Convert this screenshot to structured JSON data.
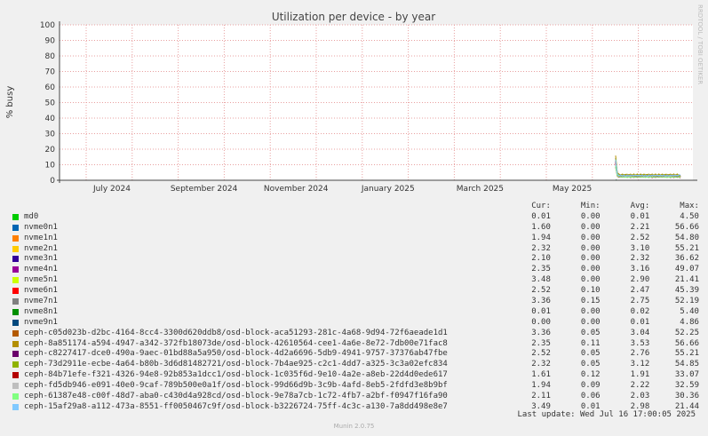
{
  "chart_data": {
    "type": "line",
    "title": "Utilization per device - by year",
    "ylabel": "% busy",
    "ylim": [
      0,
      100
    ],
    "y_ticks": [
      0,
      10,
      20,
      30,
      40,
      50,
      60,
      70,
      80,
      90,
      100
    ],
    "x_tick_labels": [
      "July 2024",
      "September 2024",
      "November 2024",
      "January 2025",
      "March 2025",
      "May 2025"
    ],
    "side_label": "RRDTOOL / TOBI OETIKER",
    "data_start": "2025-05-15",
    "data_end": "2025-07-16",
    "legend_headers": {
      "cur": "Cur:",
      "min": "Min:",
      "avg": "Avg:",
      "max": "Max:"
    },
    "series": [
      {
        "name": "md0",
        "color": "#00cc00",
        "cur": "0.01",
        "min": "0.00",
        "avg": "0.01",
        "max": "4.50"
      },
      {
        "name": "nvme0n1",
        "color": "#0066b3",
        "cur": "1.60",
        "min": "0.00",
        "avg": "2.21",
        "max": "56.66"
      },
      {
        "name": "nvme1n1",
        "color": "#ff8000",
        "cur": "1.94",
        "min": "0.00",
        "avg": "2.52",
        "max": "54.80"
      },
      {
        "name": "nvme2n1",
        "color": "#ffcc00",
        "cur": "2.32",
        "min": "0.00",
        "avg": "3.10",
        "max": "55.21"
      },
      {
        "name": "nvme3n1",
        "color": "#330099",
        "cur": "2.10",
        "min": "0.00",
        "avg": "2.32",
        "max": "36.62"
      },
      {
        "name": "nvme4n1",
        "color": "#990099",
        "cur": "2.35",
        "min": "0.00",
        "avg": "3.16",
        "max": "49.07"
      },
      {
        "name": "nvme5n1",
        "color": "#ccff00",
        "cur": "3.48",
        "min": "0.00",
        "avg": "2.90",
        "max": "21.41"
      },
      {
        "name": "nvme6n1",
        "color": "#ff0000",
        "cur": "2.52",
        "min": "0.10",
        "avg": "2.47",
        "max": "45.39"
      },
      {
        "name": "nvme7n1",
        "color": "#808080",
        "cur": "3.36",
        "min": "0.15",
        "avg": "2.75",
        "max": "52.19"
      },
      {
        "name": "nvme8n1",
        "color": "#008f00",
        "cur": "0.01",
        "min": "0.00",
        "avg": "0.02",
        "max": "5.40"
      },
      {
        "name": "nvme9n1",
        "color": "#00487d",
        "cur": "0.00",
        "min": "0.00",
        "avg": "0.01",
        "max": "4.86"
      },
      {
        "name": "ceph-c05d023b-d2bc-4164-8cc4-3300d620ddb8/osd-block-aca51293-281c-4a68-9d94-72f6aeade1d1",
        "color": "#b35a00",
        "cur": "3.36",
        "min": "0.05",
        "avg": "3.04",
        "max": "52.25"
      },
      {
        "name": "ceph-8a851174-a594-4947-a342-372fb18073de/osd-block-42610564-cee1-4a6e-8e72-7db00e71fac8",
        "color": "#b38f00",
        "cur": "2.35",
        "min": "0.11",
        "avg": "3.53",
        "max": "56.66"
      },
      {
        "name": "ceph-c8227417-dce0-490a-9aec-01bd88a5a950/osd-block-4d2a6696-5db9-4941-9757-37376ab47fbe",
        "color": "#6b006b",
        "cur": "2.52",
        "min": "0.05",
        "avg": "2.76",
        "max": "55.21"
      },
      {
        "name": "ceph-73d2911e-ecbe-4a64-b80b-3d6d81482721/osd-block-7b4ae925-c2c1-4dd7-a325-3c3a02efc834",
        "color": "#8fb300",
        "cur": "2.32",
        "min": "0.05",
        "avg": "3.12",
        "max": "54.85"
      },
      {
        "name": "ceph-84b71efe-f321-4326-94e8-92b853a1dcc1/osd-block-1c035f6d-9e10-4a2e-a8eb-22d4d0ede617",
        "color": "#b30000",
        "cur": "1.61",
        "min": "0.12",
        "avg": "1.91",
        "max": "33.07"
      },
      {
        "name": "ceph-fd5db946-e091-40e0-9caf-789b500e0a1f/osd-block-99d66d9b-3c9b-4afd-8eb5-2fdfd3e8b9bf",
        "color": "#bebebe",
        "cur": "1.94",
        "min": "0.09",
        "avg": "2.22",
        "max": "32.59"
      },
      {
        "name": "ceph-61387e48-c00f-48d7-aba0-c430d4a928cd/osd-block-9e78a7cb-1c72-4fb7-a2bf-f0947f16fa90",
        "color": "#80ff80",
        "cur": "2.11",
        "min": "0.06",
        "avg": "2.03",
        "max": "30.36"
      },
      {
        "name": "ceph-15af29a8-a112-473a-8551-ff0050467c9f/osd-block-b3226724-75ff-4c3c-a130-7a8dd498e8e7",
        "color": "#80c9ff",
        "cur": "3.49",
        "min": "0.01",
        "avg": "2.98",
        "max": "21.44"
      }
    ]
  },
  "last_update": "Last update: Wed Jul 16 17:00:05 2025",
  "version": "Munin 2.0.75"
}
